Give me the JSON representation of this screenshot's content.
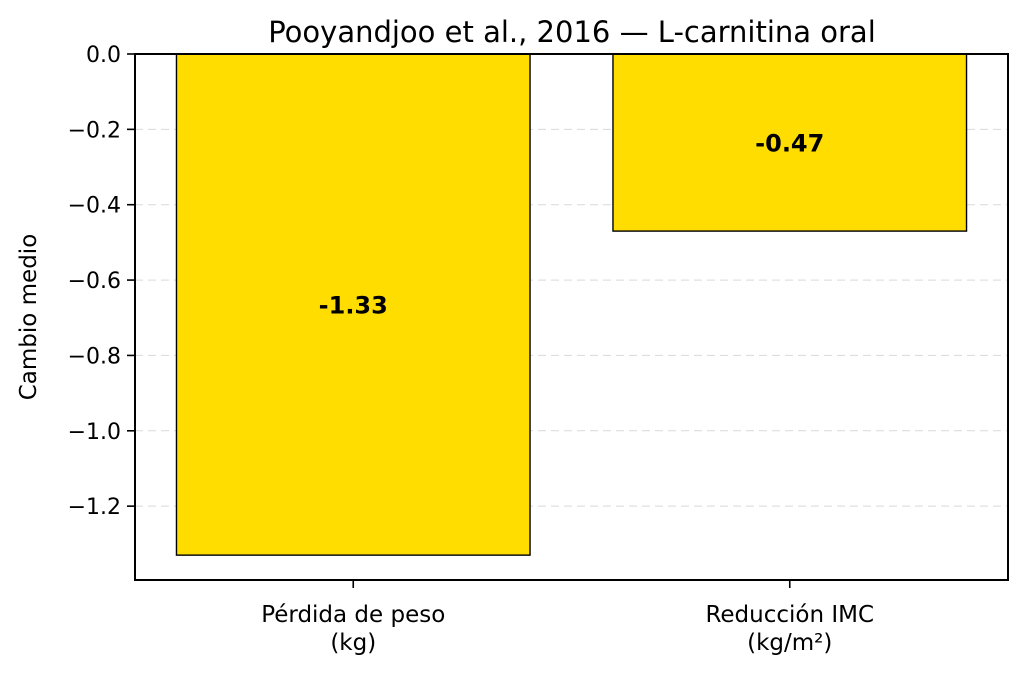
{
  "chart_data": {
    "type": "bar",
    "title": "Pooyandjoo et al., 2016 — L-carnitina oral",
    "xlabel": "",
    "ylabel": "Cambio medio",
    "categories": [
      [
        "Pérdida de peso",
        "(kg)"
      ],
      [
        "Reducción IMC",
        "(kg/m²)"
      ]
    ],
    "values": [
      -1.33,
      -0.47
    ],
    "data_labels": [
      "-1.33",
      "-0.47"
    ],
    "yticks": [
      0.0,
      -0.2,
      -0.4,
      -0.6,
      -0.8,
      -1.0,
      -1.2
    ],
    "ytick_labels": [
      "0.0",
      "−0.2",
      "−0.4",
      "−0.6",
      "−0.8",
      "−1.0",
      "−1.2"
    ],
    "ylim": [
      -1.396,
      0.0
    ],
    "grid": "y-dashed",
    "bar_color": "#FFDD00",
    "edge_color": "#000000"
  }
}
